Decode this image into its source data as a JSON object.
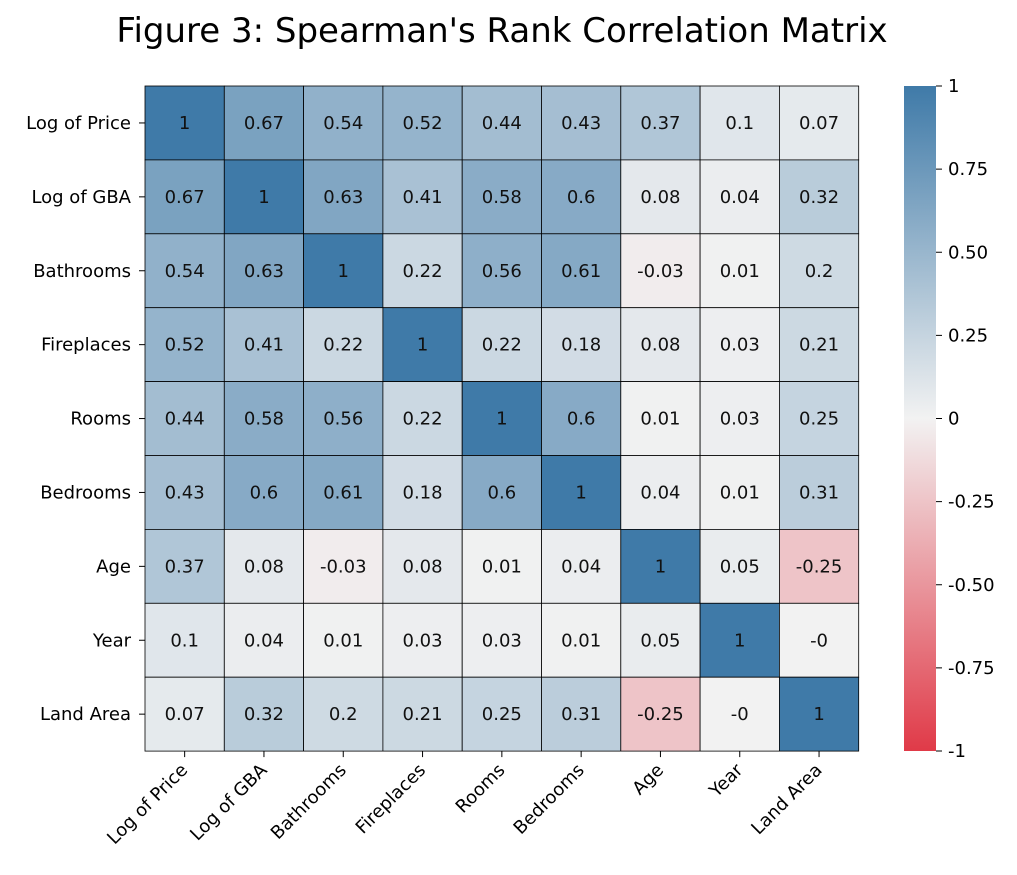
{
  "chart_data": {
    "type": "heatmap",
    "title": "Figure 3: Spearman's Rank Correlation Matrix",
    "rows": [
      "Log of Price",
      "Log of GBA",
      "Bathrooms",
      "Fireplaces",
      "Rooms",
      "Bedrooms",
      "Age",
      "Year",
      "Land Area"
    ],
    "columns": [
      "Log of Price",
      "Log of GBA",
      "Bathrooms",
      "Fireplaces",
      "Rooms",
      "Bedrooms",
      "Age",
      "Year",
      "Land Area"
    ],
    "values": [
      [
        1,
        0.67,
        0.54,
        0.52,
        0.44,
        0.43,
        0.37,
        0.1,
        0.07
      ],
      [
        0.67,
        1,
        0.63,
        0.41,
        0.58,
        0.6,
        0.08,
        0.04,
        0.32
      ],
      [
        0.54,
        0.63,
        1,
        0.22,
        0.56,
        0.61,
        -0.03,
        0.01,
        0.2
      ],
      [
        0.52,
        0.41,
        0.22,
        1,
        0.22,
        0.18,
        0.08,
        0.03,
        0.21
      ],
      [
        0.44,
        0.58,
        0.56,
        0.22,
        1,
        0.6,
        0.01,
        0.03,
        0.25
      ],
      [
        0.43,
        0.6,
        0.61,
        0.18,
        0.6,
        1,
        0.04,
        0.01,
        0.31
      ],
      [
        0.37,
        0.08,
        -0.03,
        0.08,
        0.01,
        0.04,
        1,
        0.05,
        -0.25
      ],
      [
        0.1,
        0.04,
        0.01,
        0.03,
        0.03,
        0.01,
        0.05,
        1,
        -0.0
      ],
      [
        0.07,
        0.32,
        0.2,
        0.21,
        0.25,
        0.31,
        -0.25,
        -0.0,
        1
      ]
    ],
    "cell_labels": [
      [
        "1",
        "0.67",
        "0.54",
        "0.52",
        "0.44",
        "0.43",
        "0.37",
        "0.1",
        "0.07"
      ],
      [
        "0.67",
        "1",
        "0.63",
        "0.41",
        "0.58",
        "0.6",
        "0.08",
        "0.04",
        "0.32"
      ],
      [
        "0.54",
        "0.63",
        "1",
        "0.22",
        "0.56",
        "0.61",
        "-0.03",
        "0.01",
        "0.2"
      ],
      [
        "0.52",
        "0.41",
        "0.22",
        "1",
        "0.22",
        "0.18",
        "0.08",
        "0.03",
        "0.21"
      ],
      [
        "0.44",
        "0.58",
        "0.56",
        "0.22",
        "1",
        "0.6",
        "0.01",
        "0.03",
        "0.25"
      ],
      [
        "0.43",
        "0.6",
        "0.61",
        "0.18",
        "0.6",
        "1",
        "0.04",
        "0.01",
        "0.31"
      ],
      [
        "0.37",
        "0.08",
        "-0.03",
        "0.08",
        "0.01",
        "0.04",
        "1",
        "0.05",
        "-0.25"
      ],
      [
        "0.1",
        "0.04",
        "0.01",
        "0.03",
        "0.03",
        "0.01",
        "0.05",
        "1",
        "-0"
      ],
      [
        "0.07",
        "0.32",
        "0.2",
        "0.21",
        "0.25",
        "0.31",
        "-0.25",
        "-0",
        "1"
      ]
    ],
    "vmin": -1,
    "vmax": 1,
    "colorbar_ticks": [
      1,
      0.75,
      0.5,
      0.25,
      0,
      -0.25,
      -0.5,
      -0.75,
      -1
    ],
    "colorbar_tick_labels": [
      "1",
      "0.75",
      "0.50",
      "0.25",
      "0",
      "-0.25",
      "-0.50",
      "-0.75",
      "-1"
    ],
    "colors": {
      "negative": "#e03a48",
      "center": "#f2f2f2",
      "positive": "#3f7aa8",
      "grid": "#000000"
    },
    "grid": true,
    "legend": "colorbar-right"
  }
}
